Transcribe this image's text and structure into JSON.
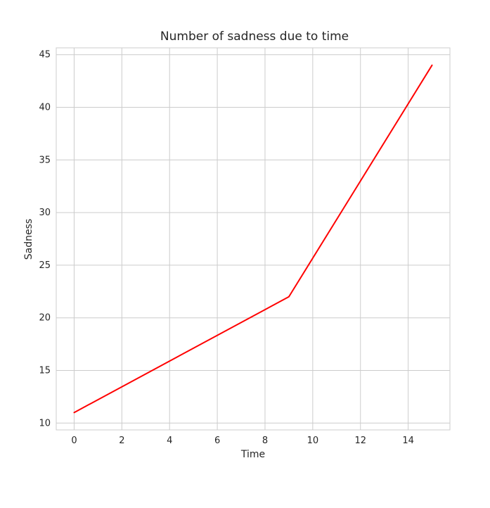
{
  "chart_data": {
    "type": "line",
    "title": "Number of sadness due to time",
    "xlabel": "Time",
    "ylabel": "Sadness",
    "xlim": [
      -0.75,
      15.75
    ],
    "ylim": [
      9.35,
      45.65
    ],
    "xticks": [
      0,
      2,
      4,
      6,
      8,
      10,
      12,
      14
    ],
    "yticks": [
      10,
      15,
      20,
      25,
      30,
      35,
      40,
      45
    ],
    "grid": true,
    "series": [
      {
        "color": "#ff0000",
        "x": [
          0,
          9,
          15
        ],
        "y": [
          11,
          22,
          44
        ]
      }
    ]
  }
}
